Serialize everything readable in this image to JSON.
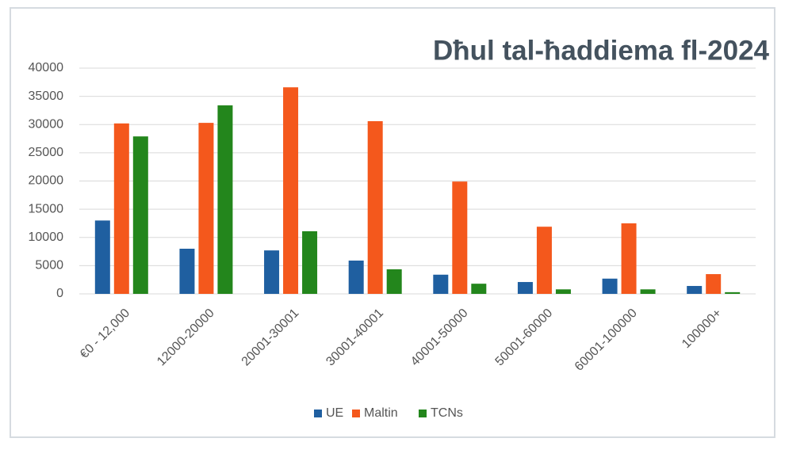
{
  "chart_data": {
    "type": "bar",
    "title": "Dħul tal-ħaddiema fl-2024",
    "categories": [
      "€0 - 12,000",
      "12000-20000",
      "20001-30001",
      "30001-40001",
      "40001-50000",
      "50001-60000",
      "60001-100000",
      "100000+"
    ],
    "series": [
      {
        "name": "UE",
        "color": "#1f5fa0",
        "values": [
          13000,
          8000,
          7700,
          5900,
          3400,
          2100,
          2700,
          1400
        ]
      },
      {
        "name": "Maltin",
        "color": "#f4581c",
        "values": [
          30200,
          30300,
          36600,
          30600,
          19900,
          11900,
          12500,
          3500
        ]
      },
      {
        "name": "TCNs",
        "color": "#23861c",
        "values": [
          27900,
          33400,
          11100,
          4350,
          1800,
          800,
          800,
          300
        ]
      }
    ],
    "ylim": [
      0,
      40000
    ],
    "yticks": [
      0,
      5000,
      10000,
      15000,
      20000,
      25000,
      30000,
      35000,
      40000
    ],
    "grid": true
  }
}
